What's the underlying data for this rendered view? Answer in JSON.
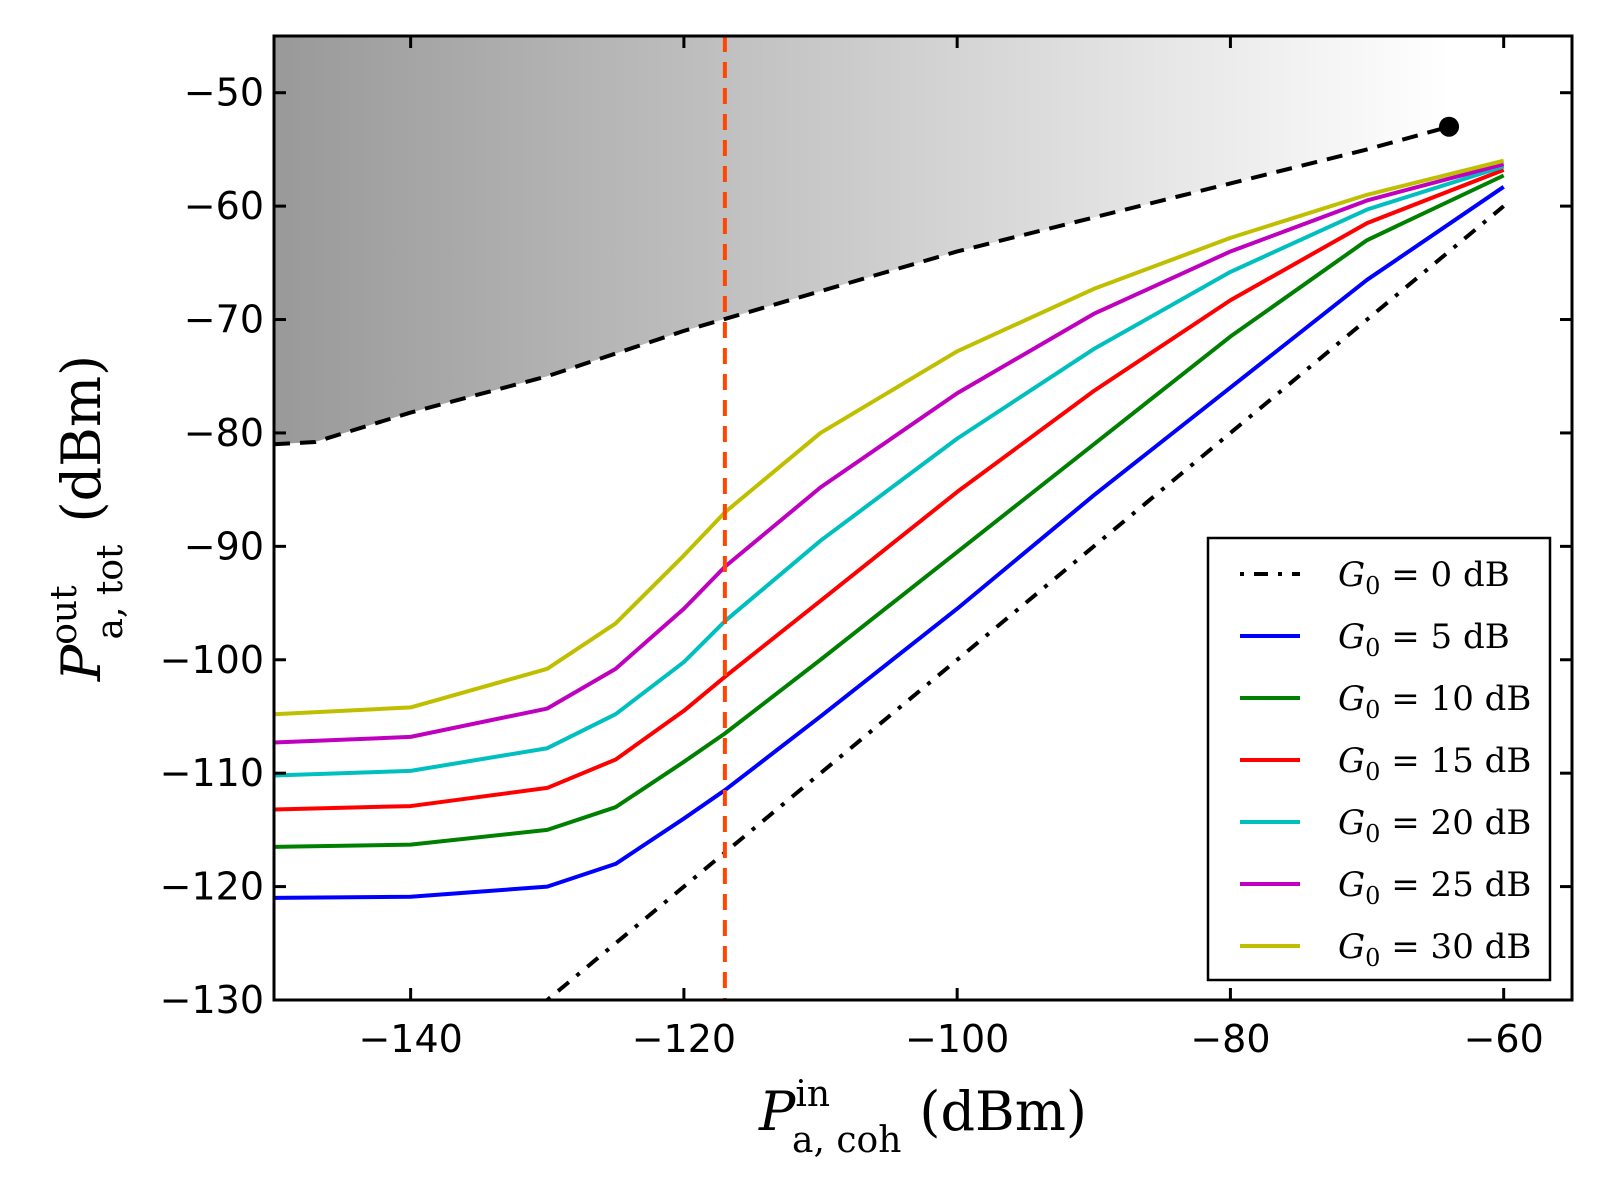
{
  "chart_data": {
    "type": "line",
    "xlim": [
      -150,
      -55
    ],
    "ylim": [
      -130,
      -45
    ],
    "x_ticks": [
      -140,
      -120,
      -100,
      -80,
      -60
    ],
    "y_ticks": [
      -130,
      -120,
      -110,
      -100,
      -90,
      -80,
      -70,
      -60,
      -50
    ],
    "x_tick_labels": [
      "−140",
      "−120",
      "−100",
      "−80",
      "−60"
    ],
    "y_tick_labels": [
      "−130",
      "−120",
      "−110",
      "−100",
      "−90",
      "−80",
      "−70",
      "−60",
      "−50"
    ],
    "xlabel": {
      "main": "P",
      "sup": "in",
      "sub": "a, coh",
      "unit": "(dBm)"
    },
    "ylabel": {
      "main": "P",
      "sup": "out",
      "sub": "a, tot",
      "unit": "(dBm)"
    },
    "vertical_marker": {
      "x": -117,
      "color": "#ff4500",
      "style": "dashed"
    },
    "boundary": {
      "style": "dashed",
      "color": "#000000",
      "x": [
        -150,
        -147,
        -140,
        -130,
        -120,
        -110,
        -100,
        -90,
        -80,
        -70,
        -64
      ],
      "y": [
        -81,
        -80.8,
        -78.2,
        -75,
        -71,
        -67.5,
        -64,
        -61,
        -58,
        -55,
        -53
      ],
      "shaded_region": "above boundary (gray gradient, dark to light left to right)"
    },
    "end_marker": {
      "x": -64,
      "y": -53
    },
    "series": [
      {
        "name": "G₀ = 0 dB",
        "label_var": "G",
        "label_sub": "0",
        "label_rest": " = 0 dB",
        "color": "#000000",
        "style": "dashdot",
        "gain_db": 0,
        "x": [
          -130,
          -60
        ],
        "y": [
          -130,
          -60
        ]
      },
      {
        "name": "G₀ = 5 dB",
        "label_var": "G",
        "label_sub": "0",
        "label_rest": " = 5 dB",
        "color": "#0000ff",
        "style": "solid",
        "gain_db": 5,
        "x": [
          -150,
          -140,
          -130,
          -125,
          -120,
          -117,
          -110,
          -100,
          -90,
          -80,
          -70,
          -60
        ],
        "y": [
          -121,
          -120.9,
          -120,
          -118,
          -114,
          -111.5,
          -105,
          -95.5,
          -85.5,
          -76,
          -66.5,
          -58.3
        ]
      },
      {
        "name": "G₀ = 10 dB",
        "label_var": "G",
        "label_sub": "0",
        "label_rest": " = 10 dB",
        "color": "#008000",
        "style": "solid",
        "gain_db": 10,
        "x": [
          -150,
          -140,
          -130,
          -125,
          -120,
          -117,
          -110,
          -100,
          -90,
          -80,
          -70,
          -60
        ],
        "y": [
          -116.5,
          -116.3,
          -115,
          -113,
          -109,
          -106.5,
          -100,
          -90.5,
          -81,
          -71.5,
          -63,
          -57.3
        ]
      },
      {
        "name": "G₀ = 15 dB",
        "label_var": "G",
        "label_sub": "0",
        "label_rest": " = 15 dB",
        "color": "#ff0000",
        "style": "solid",
        "gain_db": 15,
        "x": [
          -150,
          -140,
          -130,
          -125,
          -120,
          -117,
          -110,
          -100,
          -90,
          -80,
          -70,
          -60
        ],
        "y": [
          -113.2,
          -112.9,
          -111.3,
          -108.8,
          -104.5,
          -101.5,
          -94.8,
          -85.2,
          -76.3,
          -68.3,
          -61.5,
          -56.8
        ]
      },
      {
        "name": "G₀ = 20 dB",
        "label_var": "G",
        "label_sub": "0",
        "label_rest": " = 20 dB",
        "color": "#00bfbf",
        "style": "solid",
        "gain_db": 20,
        "x": [
          -150,
          -140,
          -130,
          -125,
          -120,
          -117,
          -110,
          -100,
          -90,
          -80,
          -70,
          -60
        ],
        "y": [
          -110.2,
          -109.8,
          -107.8,
          -104.8,
          -100.2,
          -96.6,
          -89.5,
          -80.5,
          -72.6,
          -65.8,
          -60.3,
          -56.5
        ]
      },
      {
        "name": "G₀ = 25 dB",
        "label_var": "G",
        "label_sub": "0",
        "label_rest": " = 25 dB",
        "color": "#bf00bf",
        "style": "solid",
        "gain_db": 25,
        "x": [
          -150,
          -140,
          -130,
          -125,
          -120,
          -117,
          -110,
          -100,
          -90,
          -80,
          -70,
          -60
        ],
        "y": [
          -107.3,
          -106.8,
          -104.3,
          -100.8,
          -95.5,
          -91.8,
          -84.8,
          -76.5,
          -69.5,
          -64,
          -59.5,
          -56.3
        ]
      },
      {
        "name": "G₀ = 30 dB",
        "label_var": "G",
        "label_sub": "0",
        "label_rest": " = 30 dB",
        "color": "#bfbf00",
        "style": "solid",
        "gain_db": 30,
        "x": [
          -150,
          -140,
          -130,
          -125,
          -120,
          -117,
          -110,
          -100,
          -90,
          -80,
          -70,
          -60
        ],
        "y": [
          -104.8,
          -104.2,
          -100.8,
          -96.8,
          -90.8,
          -87,
          -80,
          -72.8,
          -67.3,
          -62.8,
          -59,
          -56
        ]
      }
    ],
    "legend": {
      "position": "lower-right"
    }
  }
}
